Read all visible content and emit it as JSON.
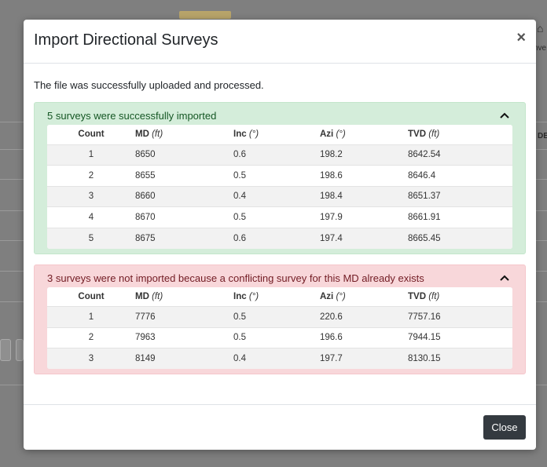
{
  "background": {
    "right_text_1": "nve",
    "right_text_2": "DE"
  },
  "modal": {
    "title": "Import Directional Surveys",
    "close_symbol": "×",
    "status": "The file was successfully uploaded and processed.",
    "success_panel": {
      "message": "5 surveys were successfully imported",
      "columns": [
        {
          "name": "Count",
          "unit": ""
        },
        {
          "name": "MD",
          "unit": "(ft)"
        },
        {
          "name": "Inc",
          "unit": "(°)"
        },
        {
          "name": "Azi",
          "unit": "(°)"
        },
        {
          "name": "TVD",
          "unit": "(ft)"
        }
      ],
      "rows": [
        [
          "1",
          "8650",
          "0.6",
          "198.2",
          "8642.54"
        ],
        [
          "2",
          "8655",
          "0.5",
          "198.6",
          "8646.4"
        ],
        [
          "3",
          "8660",
          "0.4",
          "198.4",
          "8651.37"
        ],
        [
          "4",
          "8670",
          "0.5",
          "197.9",
          "8661.91"
        ],
        [
          "5",
          "8675",
          "0.6",
          "197.4",
          "8665.45"
        ]
      ]
    },
    "failed_panel": {
      "message": "3 surveys were not imported because a conflicting survey for this MD already exists",
      "columns": [
        {
          "name": "Count",
          "unit": ""
        },
        {
          "name": "MD",
          "unit": "(ft)"
        },
        {
          "name": "Inc",
          "unit": "(°)"
        },
        {
          "name": "Azi",
          "unit": "(°)"
        },
        {
          "name": "TVD",
          "unit": "(ft)"
        }
      ],
      "rows": [
        [
          "1",
          "7776",
          "0.5",
          "220.6",
          "7757.16"
        ],
        [
          "2",
          "7963",
          "0.5",
          "196.6",
          "7944.15"
        ],
        [
          "3",
          "8149",
          "0.4",
          "197.7",
          "8130.15"
        ]
      ]
    },
    "footer": {
      "close_label": "Close"
    }
  },
  "colors": {
    "success_bg": "#d4edda",
    "success_text": "#155724",
    "danger_bg": "#f8d7da",
    "danger_text": "#721c24",
    "close_button_bg": "#343a40"
  },
  "icons": [
    "close-icon",
    "chevron-up-icon",
    "home-icon"
  ]
}
